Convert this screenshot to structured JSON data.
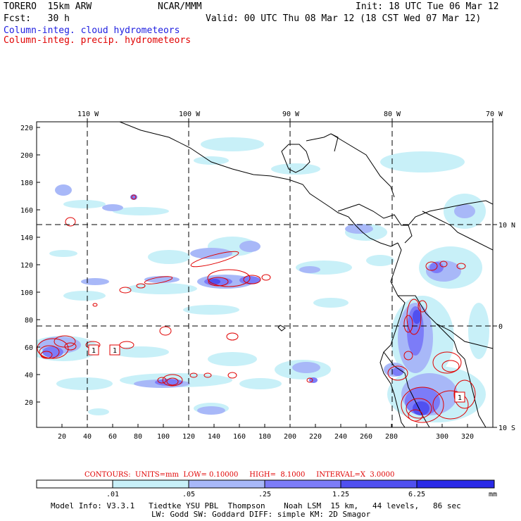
{
  "header": {
    "model": "TORERO  15km ARW",
    "org": "NCAR/MMM",
    "init": "Init: 18 UTC Tue 06 Mar 12",
    "fcst": "Fcst:   30 h",
    "valid": "Valid: 00 UTC Thu 08 Mar 12 (18 CST Wed 07 Mar 12)",
    "legend_blue": "Column-integ. cloud hydrometeors",
    "legend_red": "Column-integ. precip. hydrometeors"
  },
  "map": {
    "lon_labels": [
      "110 W",
      "100 W",
      "90 W",
      "80 W",
      "70 W"
    ],
    "lat_labels": [
      "10 N",
      "0",
      "10 S"
    ],
    "y_ticks": [
      "220",
      "200",
      "180",
      "160",
      "140",
      "120",
      "100",
      "80",
      "60",
      "40",
      "20"
    ],
    "x_ticks": [
      "20",
      "40",
      "60",
      "80",
      "100",
      "120",
      "140",
      "160",
      "180",
      "200",
      "220",
      "240",
      "260",
      "280",
      "300",
      "320"
    ],
    "box_labels": [
      "1",
      "1",
      "1"
    ],
    "colors": {
      "cloud_levels": [
        "#ffffff",
        "#c8f0f8",
        "#a8b8f8",
        "#7c7cf8",
        "#5050f0",
        "#2a2ae8"
      ],
      "precip_contour": "#e00000",
      "land_outline": "#000000"
    }
  },
  "contours_info": "CONTOURS:  UNITS=mm  LOW= 0.10000     HIGH=  8.1000     INTERVAL=X  3.0000",
  "colorbar": {
    "labels": [
      ".01",
      ".05",
      ".25",
      "1.25",
      "6.25"
    ],
    "unit": "mm"
  },
  "footer": {
    "line1": "Model Info: V3.3.1   Tiedtke YSU PBL  Thompson    Noah LSM  15 km,   44 levels,   86 sec",
    "line2": "LW: Godd SW: Goddard DIFF: simple KM: 2D Smagor"
  }
}
